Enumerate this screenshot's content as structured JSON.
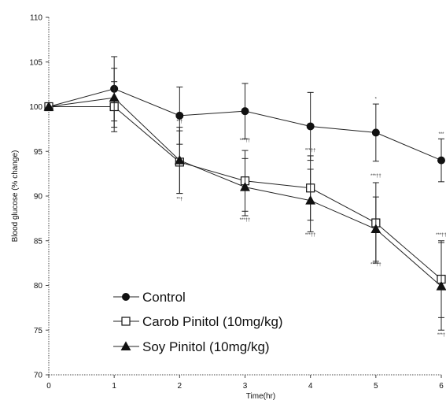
{
  "chart_data": {
    "type": "line",
    "title": "",
    "xlabel": "Time(hr)",
    "ylabel": "Blood glucose (% change)",
    "xlim": [
      0,
      6
    ],
    "ylim": [
      70,
      110
    ],
    "x": [
      0,
      1,
      2,
      3,
      4,
      5,
      6
    ],
    "xticks": [
      "0",
      "1",
      "2",
      "3",
      "4",
      "5",
      "6"
    ],
    "yticks": [
      "70",
      "75",
      "80",
      "85",
      "90",
      "95",
      "100",
      "105",
      "110"
    ],
    "grid": false,
    "legend_position": "bottom-left",
    "series": [
      {
        "name": "Control",
        "marker": "filled-circle",
        "values": [
          100,
          102,
          99,
          99.5,
          97.8,
          97.1,
          94
        ],
        "errors": [
          0,
          3.6,
          3.2,
          3.1,
          3.8,
          3.2,
          2.4
        ]
      },
      {
        "name": "Carob Pinitol (10mg/kg)",
        "marker": "open-square",
        "values": [
          100,
          100,
          93.8,
          91.7,
          90.9,
          87,
          80.7
        ],
        "errors": [
          0,
          2.8,
          3.5,
          3.4,
          3.6,
          4.5,
          4.3
        ]
      },
      {
        "name": "Soy Pinitol (10mg/kg)",
        "marker": "filled-triangle",
        "values": [
          100,
          101,
          94,
          91,
          89.5,
          86.3,
          79.9
        ],
        "errors": [
          0,
          3.3,
          3.7,
          3.2,
          3.5,
          3.6,
          4.9
        ]
      }
    ],
    "annotations": [
      {
        "x": 2,
        "y": 98.2,
        "text": "**†"
      },
      {
        "x": 2,
        "y": 89.5,
        "text": "**†"
      },
      {
        "x": 3,
        "y": 96.1,
        "text": "***††"
      },
      {
        "x": 3,
        "y": 87.2,
        "text": "***††"
      },
      {
        "x": 4,
        "y": 95.0,
        "text": "***††"
      },
      {
        "x": 4,
        "y": 85.5,
        "text": "***††"
      },
      {
        "x": 5,
        "y": 100.7,
        "text": "*"
      },
      {
        "x": 5,
        "y": 92.1,
        "text": "***††"
      },
      {
        "x": 5,
        "y": 82.2,
        "text": "***††"
      },
      {
        "x": 6,
        "y": 96.8,
        "text": "***"
      },
      {
        "x": 6,
        "y": 85.5,
        "text": "***††"
      },
      {
        "x": 6,
        "y": 74.3,
        "text": "***†"
      }
    ]
  }
}
